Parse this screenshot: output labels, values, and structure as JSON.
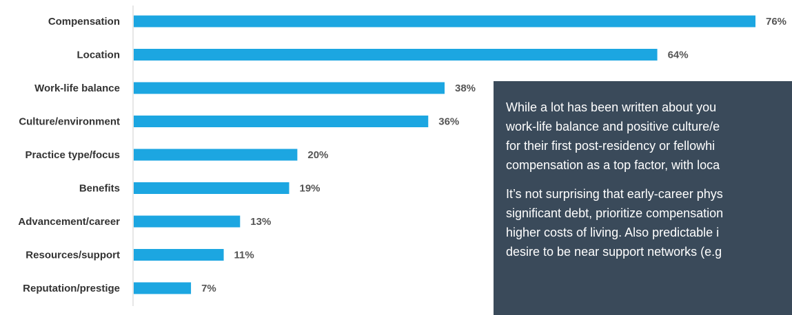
{
  "chart_data": {
    "type": "bar",
    "orientation": "horizontal",
    "categories": [
      "Compensation",
      "Location",
      "Work-life balance",
      "Culture/environment",
      "Practice type/focus",
      "Benefits",
      "Advancement/career",
      "Resources/support",
      "Reputation/prestige"
    ],
    "values": [
      76,
      64,
      38,
      36,
      20,
      19,
      13,
      11,
      7
    ],
    "value_labels": [
      "76%",
      "64%",
      "38%",
      "36%",
      "20%",
      "19%",
      "13%",
      "11%",
      "7%"
    ],
    "xlim": [
      0,
      76
    ],
    "grid": false,
    "bar_color": "#1ca6e1"
  },
  "callout": {
    "paragraphs": [
      [
        "While a lot has been written about you",
        "work-life balance and positive culture/e",
        "for their first post-residency or fellowhi",
        "compensation as a top factor, with loca"
      ],
      [
        "It’s not surprising that early-career phys",
        "significant debt, prioritize compensation",
        "higher costs of living. Also predictable i",
        "desire to be near support networks (e.g"
      ]
    ]
  }
}
